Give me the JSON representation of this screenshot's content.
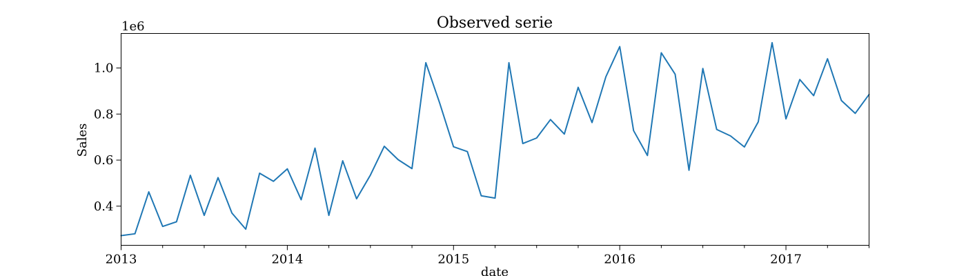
{
  "chart_data": {
    "type": "line",
    "title": "Observed serie",
    "xlabel": "date",
    "ylabel": "Sales",
    "y_offset_label": "1e6",
    "y_scale": 1000000,
    "xlim": [
      "2013-01",
      "2017-07"
    ],
    "ylim": [
      230000,
      1150000
    ],
    "x_ticks": [
      "2013",
      "2014",
      "2015",
      "2016",
      "2017"
    ],
    "y_ticks": [
      0.4,
      0.6,
      0.8,
      1.0
    ],
    "y_tick_labels": [
      "0.4",
      "0.6",
      "0.8",
      "1.0"
    ],
    "grid": false,
    "series": [
      {
        "color": "#1f77b4",
        "x": [
          "2013-01",
          "2013-02",
          "2013-03",
          "2013-04",
          "2013-05",
          "2013-06",
          "2013-07",
          "2013-08",
          "2013-09",
          "2013-10",
          "2013-11",
          "2013-12",
          "2014-01",
          "2014-02",
          "2014-03",
          "2014-04",
          "2014-05",
          "2014-06",
          "2014-07",
          "2014-08",
          "2014-09",
          "2014-10",
          "2014-11",
          "2014-12",
          "2015-01",
          "2015-02",
          "2015-03",
          "2015-04",
          "2015-05",
          "2015-06",
          "2015-07",
          "2015-08",
          "2015-09",
          "2015-10",
          "2015-11",
          "2015-12",
          "2016-01",
          "2016-02",
          "2016-03",
          "2016-04",
          "2016-05",
          "2016-06",
          "2016-07",
          "2016-08",
          "2016-09",
          "2016-10",
          "2016-11",
          "2016-12",
          "2017-01",
          "2017-02",
          "2017-03",
          "2017-04",
          "2017-05",
          "2017-06",
          "2017-07"
        ],
        "y": [
          272000,
          280000,
          462000,
          312000,
          332000,
          534000,
          360000,
          524000,
          370000,
          300000,
          543000,
          508000,
          562000,
          428000,
          652000,
          360000,
          597000,
          432000,
          535000,
          660000,
          602000,
          563000,
          1023000,
          848000,
          658000,
          637000,
          445000,
          435000,
          1023000,
          672000,
          696000,
          776000,
          713000,
          916000,
          763000,
          962000,
          1093000,
          728000,
          620000,
          1066000,
          973000,
          556000,
          998000,
          733000,
          705000,
          657000,
          766000,
          1110000,
          779000,
          950000,
          880000,
          1040000,
          859000,
          803000,
          885000
        ]
      }
    ]
  }
}
